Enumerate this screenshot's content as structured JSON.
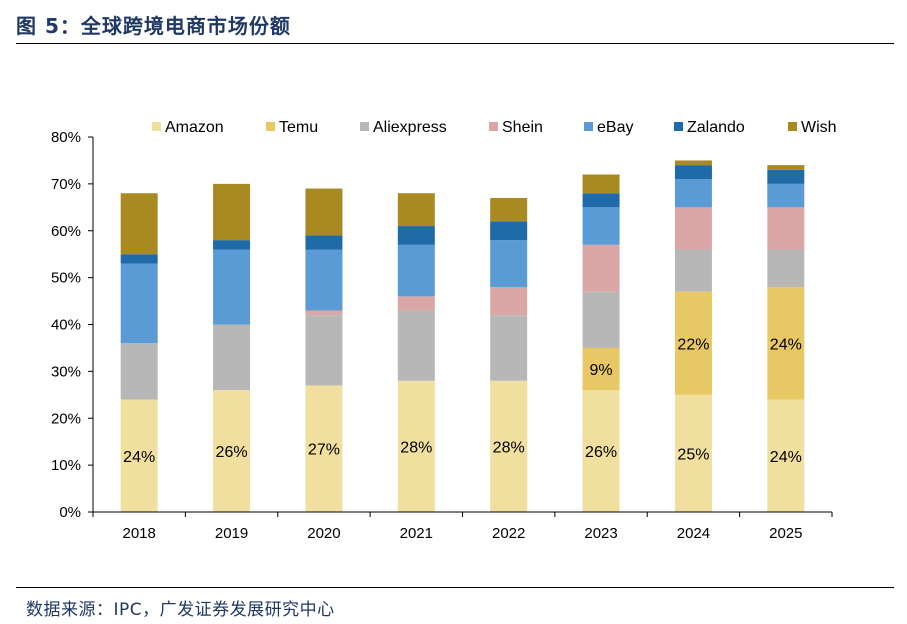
{
  "header": {
    "title": "图 5：全球跨境电商市场份额"
  },
  "footer": {
    "source": "数据来源：IPC，广发证券发展研究中心"
  },
  "colors": {
    "Amazon": "#f0df9e",
    "Temu": "#e8c865",
    "Aliexpress": "#b7b7b7",
    "Shein": "#d9a6a5",
    "eBay": "#5b9bd5",
    "Zalando": "#1f6aa8",
    "Wish": "#a88a20"
  },
  "chart_data": {
    "type": "bar",
    "stacked": true,
    "categories": [
      "2018",
      "2019",
      "2020",
      "2021",
      "2022",
      "2023",
      "2024",
      "2025"
    ],
    "ylim": [
      0,
      80
    ],
    "yticks": [
      "0%",
      "10%",
      "20%",
      "30%",
      "40%",
      "50%",
      "60%",
      "70%",
      "80%"
    ],
    "legend_position": "top",
    "grid": false,
    "series": [
      {
        "name": "Amazon",
        "values": [
          24,
          26,
          27,
          28,
          28,
          26,
          25,
          24
        ]
      },
      {
        "name": "Temu",
        "values": [
          0,
          0,
          0,
          0,
          0,
          9,
          22,
          24
        ]
      },
      {
        "name": "Aliexpress",
        "values": [
          12,
          14,
          15,
          15,
          14,
          12,
          9,
          8
        ]
      },
      {
        "name": "Shein",
        "values": [
          0,
          0,
          1,
          3,
          6,
          10,
          9,
          9
        ]
      },
      {
        "name": "eBay",
        "values": [
          17,
          16,
          13,
          11,
          10,
          8,
          6,
          5
        ]
      },
      {
        "name": "Zalando",
        "values": [
          2,
          2,
          3,
          4,
          4,
          3,
          3,
          3
        ]
      },
      {
        "name": "Wish",
        "values": [
          13,
          12,
          10,
          7,
          5,
          4,
          1,
          1
        ]
      }
    ],
    "data_labels": {
      "Amazon": [
        "24%",
        "26%",
        "27%",
        "28%",
        "28%",
        "26%",
        "25%",
        "24%"
      ],
      "Temu": [
        "",
        "",
        "",
        "",
        "",
        "9%",
        "22%",
        "24%"
      ]
    }
  }
}
